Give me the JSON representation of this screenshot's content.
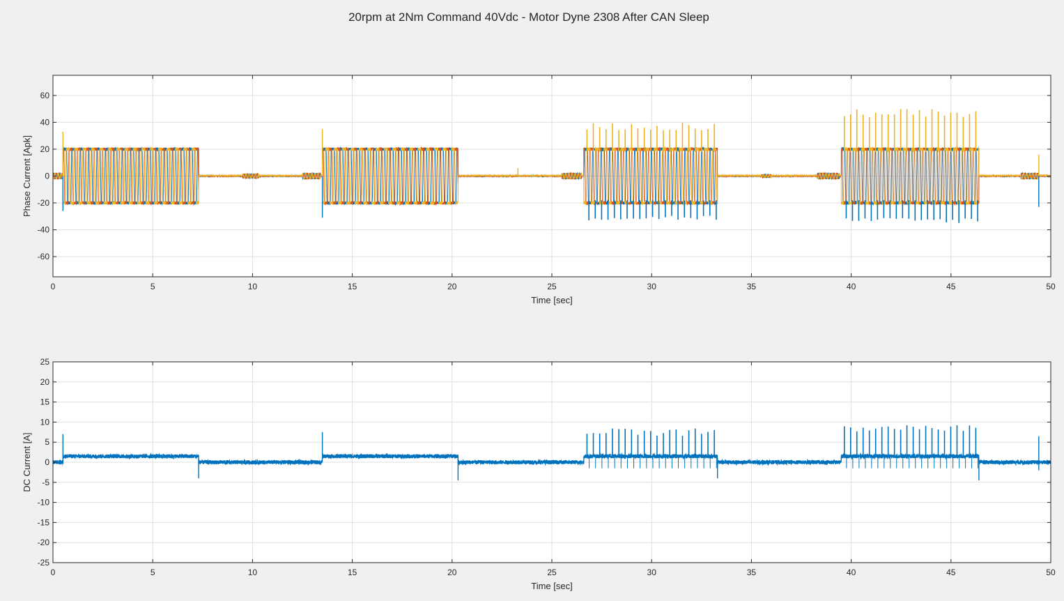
{
  "title": "20rpm at 2Nm Command 40Vdc - Motor Dyne 2308 After CAN Sleep",
  "colors": {
    "figure_bg": "#f0f0f0",
    "axes_bg": "#ffffff",
    "grid": "#dfdfdf",
    "axis": "#262626",
    "phase_a": "#0072bd",
    "phase_b": "#d95319",
    "phase_c": "#edb120",
    "dc": "#0072bd"
  },
  "chart_data": [
    {
      "type": "line",
      "xlabel": "Time [sec]",
      "ylabel": "Phase Current [Apk]",
      "xlim": [
        0,
        50
      ],
      "ylim": [
        -75,
        75
      ],
      "xticks": [
        0,
        5,
        10,
        15,
        20,
        25,
        30,
        35,
        40,
        45,
        50
      ],
      "yticks": [
        -60,
        -40,
        -20,
        0,
        20,
        40,
        60
      ],
      "grid": true,
      "series": [
        {
          "color": "#0072bd",
          "phase_offset_deg": 0
        },
        {
          "color": "#d95319",
          "phase_offset_deg": 120
        },
        {
          "color": "#edb120",
          "phase_offset_deg": 240
        }
      ],
      "segments": [
        {
          "start": 0.5,
          "end": 7.3,
          "amplitude": 20,
          "peak_spikes": false
        },
        {
          "start": 13.5,
          "end": 20.3,
          "amplitude": 20,
          "peak_spikes": false
        },
        {
          "start": 26.6,
          "end": 33.3,
          "amplitude": 20,
          "peak_spikes": true,
          "spike_pos": 40,
          "spike_neg": -33,
          "spike_count": 21
        },
        {
          "start": 39.5,
          "end": 46.4,
          "amplitude": 20,
          "peak_spikes": true,
          "spike_pos": 50,
          "spike_neg": -35,
          "spike_count": 22
        }
      ],
      "idle_bumps": [
        {
          "start": 0,
          "end": 0.5,
          "level": 2
        },
        {
          "start": 9.5,
          "end": 10.3,
          "level": 1.5
        },
        {
          "start": 12.5,
          "end": 13.4,
          "level": 2
        },
        {
          "start": 25.5,
          "end": 26.5,
          "level": 2
        },
        {
          "start": 35.5,
          "end": 36.0,
          "level": 1
        },
        {
          "start": 38.3,
          "end": 39.4,
          "level": 2
        },
        {
          "start": 48.5,
          "end": 49.4,
          "level": 2
        }
      ],
      "transient_spikes": [
        {
          "t": 0.5,
          "value": 33
        },
        {
          "t": 0.5,
          "value": -26
        },
        {
          "t": 13.5,
          "value": 35
        },
        {
          "t": 13.5,
          "value": -31
        },
        {
          "t": 23.3,
          "value": 6
        },
        {
          "t": 49.4,
          "value": 16
        },
        {
          "t": 49.4,
          "value": -23
        }
      ]
    },
    {
      "type": "line",
      "xlabel": "Time [sec]",
      "ylabel": "DC Current [A]",
      "xlim": [
        0,
        50
      ],
      "ylim": [
        -25,
        25
      ],
      "xticks": [
        0,
        5,
        10,
        15,
        20,
        25,
        30,
        35,
        40,
        45,
        50
      ],
      "yticks": [
        -25,
        -20,
        -15,
        -10,
        -5,
        0,
        5,
        10,
        15,
        20,
        25
      ],
      "grid": true,
      "series": [
        {
          "color": "#0072bd"
        }
      ],
      "levels": [
        {
          "start": 0,
          "end": 0.5,
          "value": 0
        },
        {
          "start": 0.5,
          "end": 7.3,
          "value": 1.5
        },
        {
          "start": 7.3,
          "end": 13.5,
          "value": 0
        },
        {
          "start": 13.5,
          "end": 20.3,
          "value": 1.5
        },
        {
          "start": 20.3,
          "end": 26.6,
          "value": 0
        },
        {
          "start": 26.6,
          "end": 33.3,
          "value": 1.5
        },
        {
          "start": 33.3,
          "end": 39.5,
          "value": 0
        },
        {
          "start": 39.5,
          "end": 46.4,
          "value": 1.5
        },
        {
          "start": 46.4,
          "end": 50,
          "value": 0
        }
      ],
      "burst_spikes": [
        {
          "start": 26.6,
          "end": 33.3,
          "peak": 8.5,
          "count": 21
        },
        {
          "start": 39.5,
          "end": 46.4,
          "peak": 9.5,
          "count": 22
        }
      ],
      "transient_spikes": [
        {
          "t": 0.5,
          "value": 7
        },
        {
          "t": 7.3,
          "value": -4
        },
        {
          "t": 13.5,
          "value": 7.5
        },
        {
          "t": 20.3,
          "value": -4.5
        },
        {
          "t": 33.3,
          "value": -4
        },
        {
          "t": 46.4,
          "value": -4.5
        },
        {
          "t": 49.4,
          "value": 6.5
        },
        {
          "t": 49.4,
          "value": -2
        }
      ]
    }
  ]
}
